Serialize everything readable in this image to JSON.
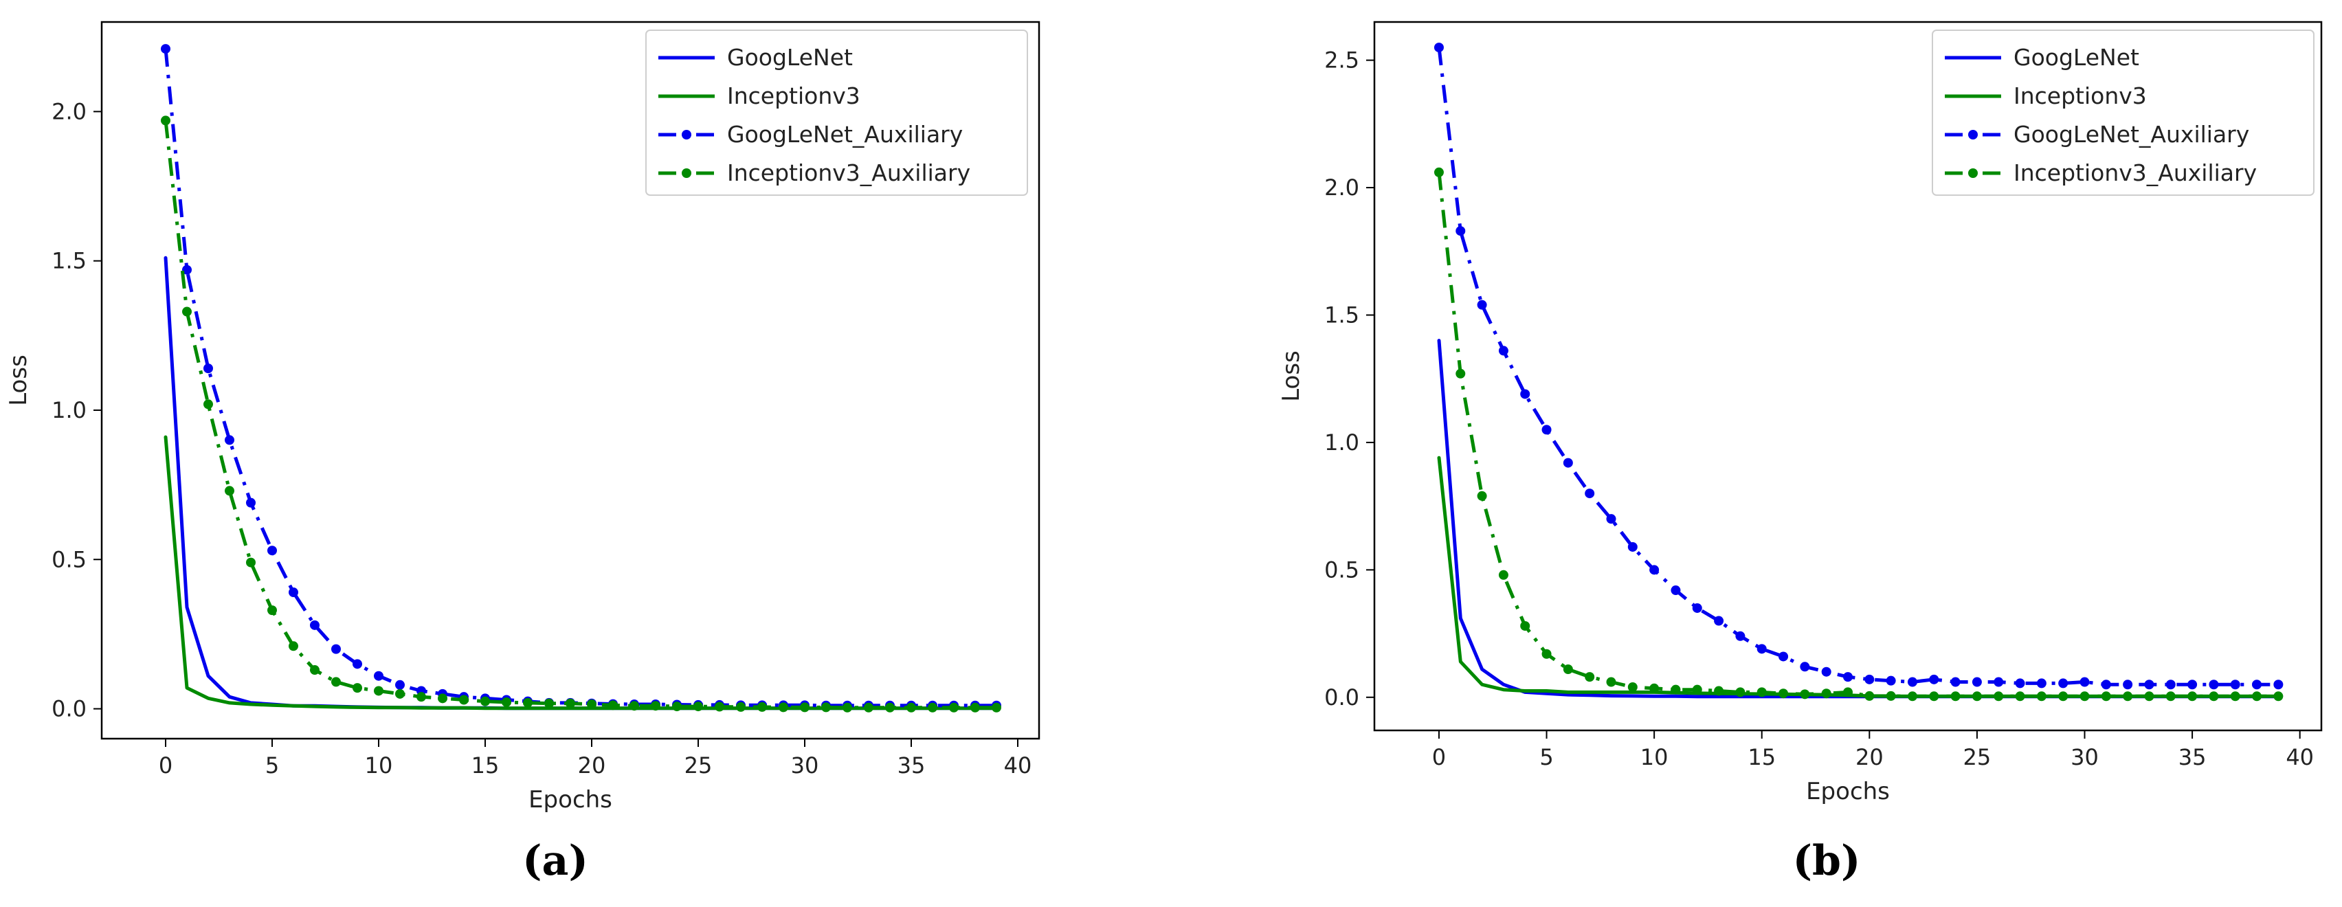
{
  "chart_data": [
    {
      "type": "line",
      "panel_label": "(a)",
      "xlabel": "Epochs",
      "ylabel": "Loss",
      "xlim": [
        -3,
        41
      ],
      "ylim": [
        -0.1,
        2.3
      ],
      "xticks": [
        0,
        5,
        10,
        15,
        20,
        25,
        30,
        35,
        40
      ],
      "xtick_labels": [
        "0",
        "5",
        "10",
        "15",
        "20",
        "25",
        "30",
        "35",
        "40"
      ],
      "yticks": [
        0.0,
        0.5,
        1.0,
        1.5,
        2.0
      ],
      "ytick_labels": [
        "0.0",
        "0.5",
        "1.0",
        "1.5",
        "2.0"
      ],
      "grid": false,
      "legend_position": "top-right",
      "x": [
        0,
        1,
        2,
        3,
        4,
        5,
        6,
        7,
        8,
        9,
        10,
        11,
        12,
        13,
        14,
        15,
        16,
        17,
        18,
        19,
        20,
        21,
        22,
        23,
        24,
        25,
        26,
        27,
        28,
        29,
        30,
        31,
        32,
        33,
        34,
        35,
        36,
        37,
        38,
        39
      ],
      "series": [
        {
          "name": "GoogLeNet",
          "color": "#0000ee",
          "style": "solid",
          "marker": false,
          "values": [
            1.51,
            0.34,
            0.11,
            0.04,
            0.02,
            0.015,
            0.01,
            0.01,
            0.008,
            0.006,
            0.005,
            0.004,
            0.004,
            0.003,
            0.003,
            0.003,
            0.002,
            0.002,
            0.002,
            0.002,
            0.002,
            0.002,
            0.002,
            0.002,
            0.002,
            0.002,
            0.002,
            0.002,
            0.002,
            0.002,
            0.002,
            0.002,
            0.002,
            0.002,
            0.002,
            0.002,
            0.002,
            0.002,
            0.002,
            0.002
          ]
        },
        {
          "name": "Inceptionv3",
          "color": "#008a00",
          "style": "solid",
          "marker": false,
          "values": [
            0.91,
            0.07,
            0.035,
            0.02,
            0.015,
            0.012,
            0.01,
            0.008,
            0.006,
            0.005,
            0.004,
            0.004,
            0.003,
            0.003,
            0.003,
            0.002,
            0.002,
            0.002,
            0.002,
            0.002,
            0.002,
            0.002,
            0.002,
            0.002,
            0.002,
            0.002,
            0.002,
            0.002,
            0.002,
            0.002,
            0.002,
            0.002,
            0.002,
            0.002,
            0.002,
            0.002,
            0.002,
            0.002,
            0.002,
            0.002
          ]
        },
        {
          "name": "GoogLeNet_Auxiliary",
          "color": "#0000ee",
          "style": "dashdot",
          "marker": true,
          "values": [
            2.21,
            1.47,
            1.14,
            0.9,
            0.69,
            0.53,
            0.39,
            0.28,
            0.2,
            0.15,
            0.11,
            0.08,
            0.06,
            0.05,
            0.04,
            0.035,
            0.03,
            0.025,
            0.02,
            0.02,
            0.018,
            0.016,
            0.015,
            0.015,
            0.014,
            0.013,
            0.013,
            0.012,
            0.012,
            0.012,
            0.012,
            0.011,
            0.011,
            0.011,
            0.011,
            0.011,
            0.011,
            0.011,
            0.011,
            0.011
          ]
        },
        {
          "name": "Inceptionv3_Auxiliary",
          "color": "#008a00",
          "style": "dashdot",
          "marker": true,
          "values": [
            1.97,
            1.33,
            1.02,
            0.73,
            0.49,
            0.33,
            0.21,
            0.13,
            0.09,
            0.07,
            0.06,
            0.05,
            0.04,
            0.035,
            0.03,
            0.025,
            0.022,
            0.02,
            0.018,
            0.018,
            0.015,
            0.012,
            0.01,
            0.01,
            0.008,
            0.008,
            0.007,
            0.006,
            0.006,
            0.005,
            0.005,
            0.005,
            0.004,
            0.004,
            0.004,
            0.004,
            0.004,
            0.004,
            0.004,
            0.004
          ]
        }
      ]
    },
    {
      "type": "line",
      "panel_label": "(b)",
      "xlabel": "Epochs",
      "ylabel": "Loss",
      "xlim": [
        -3,
        41
      ],
      "ylim": [
        -0.13,
        2.65
      ],
      "xticks": [
        0,
        5,
        10,
        15,
        20,
        25,
        30,
        35,
        40
      ],
      "xtick_labels": [
        "0",
        "5",
        "10",
        "15",
        "20",
        "25",
        "30",
        "35",
        "40"
      ],
      "yticks": [
        0.0,
        0.5,
        1.0,
        1.5,
        2.0,
        2.5
      ],
      "ytick_labels": [
        "0.0",
        "0.5",
        "1.0",
        "1.5",
        "2.0",
        "2.5"
      ],
      "grid": false,
      "legend_position": "top-right",
      "x": [
        0,
        1,
        2,
        3,
        4,
        5,
        6,
        7,
        8,
        9,
        10,
        11,
        12,
        13,
        14,
        15,
        16,
        17,
        18,
        19,
        20,
        21,
        22,
        23,
        24,
        25,
        26,
        27,
        28,
        29,
        30,
        31,
        32,
        33,
        34,
        35,
        36,
        37,
        38,
        39
      ],
      "series": [
        {
          "name": "GoogLeNet",
          "color": "#0000ee",
          "style": "solid",
          "marker": false,
          "values": [
            1.4,
            0.31,
            0.11,
            0.05,
            0.02,
            0.015,
            0.01,
            0.008,
            0.006,
            0.005,
            0.004,
            0.004,
            0.003,
            0.003,
            0.003,
            0.003,
            0.003,
            0.003,
            0.003,
            0.003,
            0.003,
            0.003,
            0.003,
            0.003,
            0.003,
            0.003,
            0.003,
            0.003,
            0.003,
            0.003,
            0.003,
            0.003,
            0.003,
            0.003,
            0.003,
            0.003,
            0.003,
            0.003,
            0.003,
            0.003
          ]
        },
        {
          "name": "Inceptionv3",
          "color": "#008a00",
          "style": "solid",
          "marker": false,
          "values": [
            0.94,
            0.14,
            0.05,
            0.03,
            0.025,
            0.025,
            0.02,
            0.02,
            0.02,
            0.02,
            0.02,
            0.018,
            0.016,
            0.015,
            0.014,
            0.013,
            0.012,
            0.011,
            0.01,
            0.008,
            0.005,
            0.004,
            0.004,
            0.004,
            0.004,
            0.004,
            0.004,
            0.004,
            0.004,
            0.004,
            0.004,
            0.004,
            0.004,
            0.004,
            0.004,
            0.004,
            0.004,
            0.004,
            0.004,
            0.004
          ]
        },
        {
          "name": "GoogLeNet_Auxiliary",
          "color": "#0000ee",
          "style": "dashdot",
          "marker": true,
          "values": [
            2.55,
            1.83,
            1.54,
            1.36,
            1.19,
            1.05,
            0.92,
            0.8,
            0.7,
            0.59,
            0.5,
            0.42,
            0.35,
            0.3,
            0.24,
            0.19,
            0.16,
            0.12,
            0.1,
            0.08,
            0.07,
            0.065,
            0.06,
            0.07,
            0.06,
            0.06,
            0.06,
            0.055,
            0.055,
            0.055,
            0.06,
            0.05,
            0.05,
            0.05,
            0.05,
            0.05,
            0.05,
            0.05,
            0.05,
            0.05
          ]
        },
        {
          "name": "Inceptionv3_Auxiliary",
          "color": "#008a00",
          "style": "dashdot",
          "marker": true,
          "values": [
            2.06,
            1.27,
            0.79,
            0.48,
            0.28,
            0.17,
            0.11,
            0.08,
            0.06,
            0.04,
            0.035,
            0.03,
            0.03,
            0.025,
            0.02,
            0.02,
            0.015,
            0.012,
            0.015,
            0.02,
            0.005,
            0.005,
            0.004,
            0.004,
            0.004,
            0.004,
            0.004,
            0.004,
            0.004,
            0.004,
            0.004,
            0.004,
            0.004,
            0.004,
            0.004,
            0.004,
            0.004,
            0.004,
            0.004,
            0.004
          ]
        }
      ]
    }
  ]
}
